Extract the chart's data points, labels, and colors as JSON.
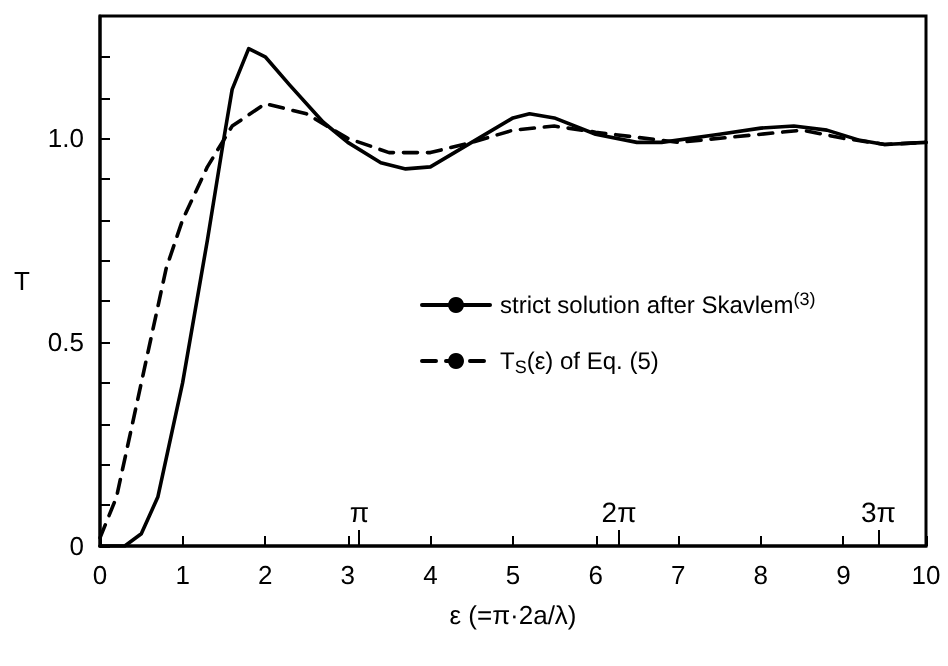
{
  "chart_data": {
    "type": "line",
    "xlabel": "ε (=π·2a/λ)",
    "ylabel": "T",
    "xlim": [
      0,
      10
    ],
    "xticks": [
      0,
      1,
      2,
      3,
      4,
      5,
      6,
      7,
      8,
      9,
      10
    ],
    "ylim": [
      0,
      1.3
    ],
    "yticks": [
      0,
      {
        "value": 0.1,
        "label": null
      },
      {
        "value": 0.2,
        "label": null
      },
      {
        "value": 0.3,
        "label": null
      },
      {
        "value": 0.4,
        "label": null
      },
      {
        "value": 0.5,
        "label": "0.5"
      },
      {
        "value": 0.6,
        "label": null
      },
      {
        "value": 0.7,
        "label": null
      },
      {
        "value": 0.8,
        "label": null
      },
      {
        "value": 0.9,
        "label": null
      },
      {
        "value": 1.0,
        "label": "1.0"
      },
      {
        "value": 1.1,
        "label": null
      },
      {
        "value": 1.2,
        "label": null
      }
    ],
    "grid": false,
    "legend": "right",
    "marker": "none",
    "series": [
      {
        "name": "strict solution after Skavlem$^{(3)}$",
        "color": "#000000",
        "line_style": "solid",
        "x": [
          0,
          0.3,
          0.5,
          0.7,
          1.0,
          1.3,
          1.5,
          1.6,
          1.8,
          2.0,
          2.3,
          2.7,
          3.0,
          3.4,
          3.7,
          4.0,
          4.5,
          5.0,
          5.2,
          5.5,
          6.0,
          6.5,
          6.8,
          7.5,
          8.0,
          8.4,
          8.8,
          9.2,
          9.5,
          10
        ],
        "values": [
          0,
          0,
          0.03,
          0.12,
          0.4,
          0.75,
          1.0,
          1.12,
          1.22,
          1.2,
          1.13,
          1.04,
          0.99,
          0.94,
          0.925,
          0.93,
          0.99,
          1.05,
          1.06,
          1.05,
          1.01,
          0.99,
          0.99,
          1.01,
          1.025,
          1.03,
          1.02,
          0.995,
          0.985,
          0.99
        ]
      },
      {
        "name": "T$_{S}$(ε) of Eq. (5)",
        "color": "#000000",
        "line_style": "dashed",
        "x": [
          0,
          0.2,
          0.5,
          0.8,
          1.0,
          1.3,
          1.6,
          2.0,
          2.5,
          3.0,
          3.5,
          4.0,
          4.5,
          5.0,
          5.5,
          6.0,
          7.0,
          8.0,
          8.5,
          9.0,
          9.5,
          10
        ],
        "values": [
          0.02,
          0.12,
          0.4,
          0.68,
          0.8,
          0.93,
          1.03,
          1.085,
          1.06,
          1.0,
          0.965,
          0.965,
          0.99,
          1.02,
          1.03,
          1.015,
          0.99,
          1.01,
          1.02,
          1.0,
          0.985,
          0.99
        ]
      }
    ],
    "x2lim": [
      0,
      10
    ],
    "x2ticks": [
      {
        "value": 3.1416,
        "label": "π"
      },
      {
        "value": 6.2832,
        "label": "2π"
      },
      {
        "value": 9.4248,
        "label": "3π"
      }
    ]
  }
}
